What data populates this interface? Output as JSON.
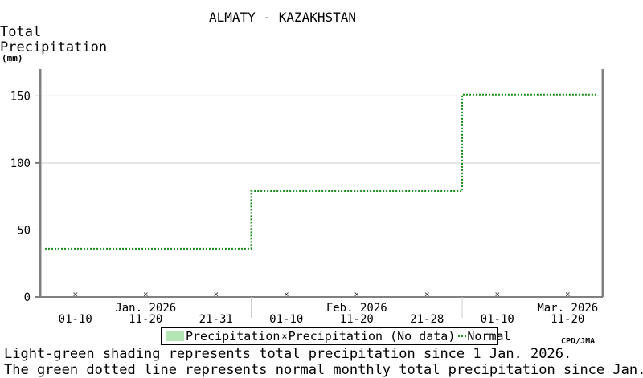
{
  "chart_data": {
    "type": "line",
    "title": "ALMATY - KAZAKHSTAN",
    "ylabel": [
      "Total",
      "Precipitation"
    ],
    "yunit": "(mm)",
    "ylim": [
      0,
      170
    ],
    "yticks": [
      0,
      50,
      100,
      150
    ],
    "grid": true,
    "x_periods": [
      "01-10",
      "11-20",
      "21-31",
      "01-10",
      "11-20",
      "21-28",
      "01-10",
      "11-20"
    ],
    "month_labels": [
      {
        "label": "Jan. 2026",
        "period_index": 1
      },
      {
        "label": "Feb. 2026",
        "period_index": 4
      },
      {
        "label": "Mar. 2026",
        "period_index": 7
      }
    ],
    "series": [
      {
        "name": "Normal",
        "style": "dotted",
        "color": "#1a8a1a",
        "steps": [
          {
            "from_period": 0,
            "to_period": 2,
            "value": 36
          },
          {
            "from_period": 3,
            "to_period": 5,
            "value": 79
          },
          {
            "from_period": 6,
            "to_period": 7,
            "value": 151
          }
        ]
      },
      {
        "name": "Precipitation (No data)",
        "marker": "x",
        "color": "#333333",
        "periods": [
          0,
          1,
          2,
          3,
          4,
          5,
          6,
          7
        ],
        "value": 0
      }
    ],
    "legend": {
      "placement": "bottom-center",
      "entries": [
        "Precipitation",
        "Precipitation (No data)",
        "Normal"
      ]
    },
    "colors": {
      "shade": "#b3e6b3",
      "normal": "#1a8a1a",
      "grid": "#cccccc",
      "axis": "#808080"
    }
  },
  "credit": "CPD/JMA",
  "notes": [
    "Light-green shading represents total precipitation since 1 Jan. 2026.",
    "The green dotted line represents normal monthly total precipitation since Jan."
  ]
}
